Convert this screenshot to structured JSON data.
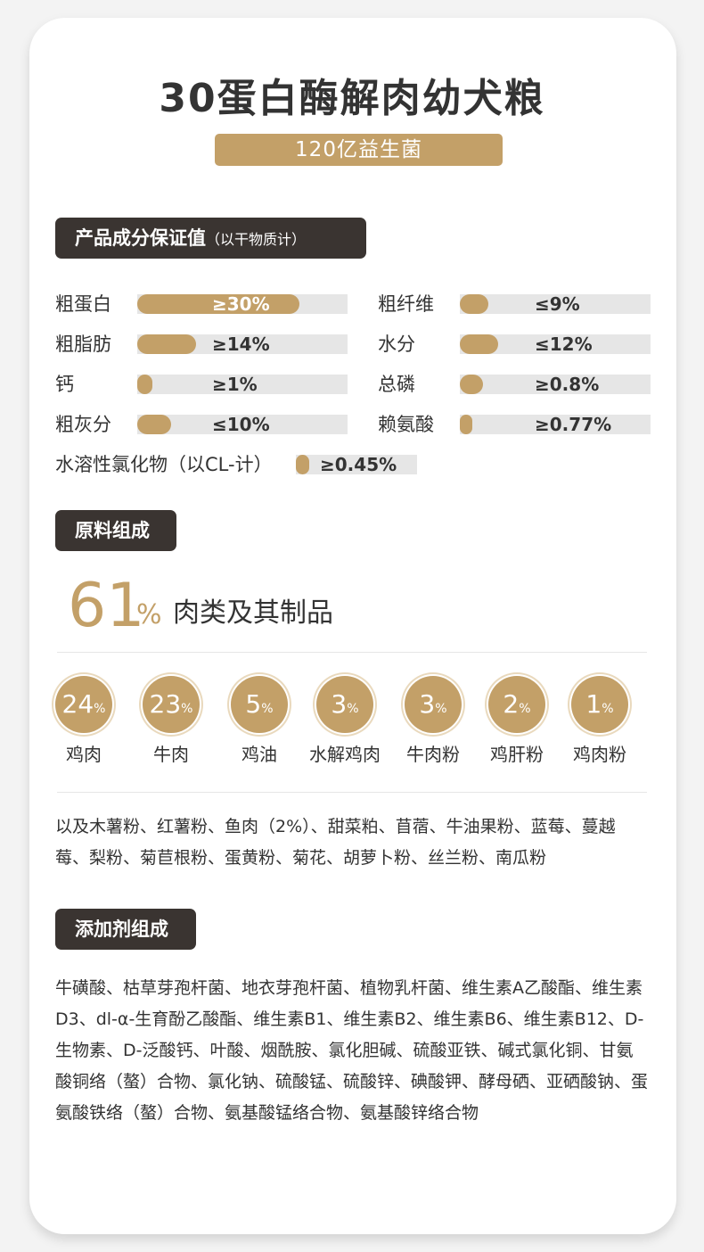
{
  "title": "30蛋白酶解肉幼犬粮",
  "subtitle": "120亿益生菌",
  "guarantee": {
    "heading": "产品成分保证值",
    "heading_note": "（以干物质计）",
    "items": [
      {
        "label": "粗蛋白",
        "value": "≥30%",
        "fill": 0.77
      },
      {
        "label": "粗纤维",
        "value": "≤9%",
        "fill": 0.15
      },
      {
        "label": "粗脂肪",
        "value": "≥14%",
        "fill": 0.28
      },
      {
        "label": "水分",
        "value": "≤12%",
        "fill": 0.2
      },
      {
        "label": "钙",
        "value": "≥1%",
        "fill": 0.07
      },
      {
        "label": "总磷",
        "value": "≥0.8%",
        "fill": 0.12
      },
      {
        "label": "粗灰分",
        "value": "≤10%",
        "fill": 0.16
      },
      {
        "label": "赖氨酸",
        "value": "≥0.77%",
        "fill": 0.06
      },
      {
        "label": "水溶性氯化物（以CL-计）",
        "value": "≥0.45%",
        "fill": 0.11
      }
    ]
  },
  "materials": {
    "heading": "原料组成",
    "meat_percent": "61",
    "percent_symbol": "%",
    "meat_label": "肉类及其制品",
    "ingredients": [
      {
        "value": "24",
        "unit": "%",
        "name": "鸡肉"
      },
      {
        "value": "23",
        "unit": "%",
        "name": "牛肉"
      },
      {
        "value": "5",
        "unit": "%",
        "name": "鸡油"
      },
      {
        "value": "3",
        "unit": "%",
        "name": "水解鸡肉"
      },
      {
        "value": "3",
        "unit": "%",
        "name": "牛肉粉"
      },
      {
        "value": "2",
        "unit": "%",
        "name": "鸡肝粉"
      },
      {
        "value": "1",
        "unit": "%",
        "name": "鸡肉粉"
      }
    ],
    "others": "以及木薯粉、红薯粉、鱼肉（2%）、甜菜粕、苜蓿、牛油果粉、蓝莓、蔓越莓、梨粉、菊苣根粉、蛋黄粉、菊花、胡萝卜粉、丝兰粉、南瓜粉"
  },
  "additives": {
    "heading": "添加剂组成",
    "text": "牛磺酸、枯草芽孢杆菌、地衣芽孢杆菌、植物乳杆菌、维生素A乙酸酯、维生素D3、dl-α-生育酚乙酸酯、维生素B1、维生素B2、维生素B6、维生素B12、D-生物素、D-泛酸钙、叶酸、烟酰胺、氯化胆碱、硫酸亚铁、碱式氯化铜、甘氨酸铜络（螯）合物、氯化钠、硫酸锰、硫酸锌、碘酸钾、酵母硒、亚硒酸钠、蛋氨酸铁络（螯）合物、氨基酸锰络合物、氨基酸锌络合物"
  },
  "colors": {
    "accent": "#c3a068",
    "dark": "#3a3431",
    "track": "#e6e6e6"
  }
}
